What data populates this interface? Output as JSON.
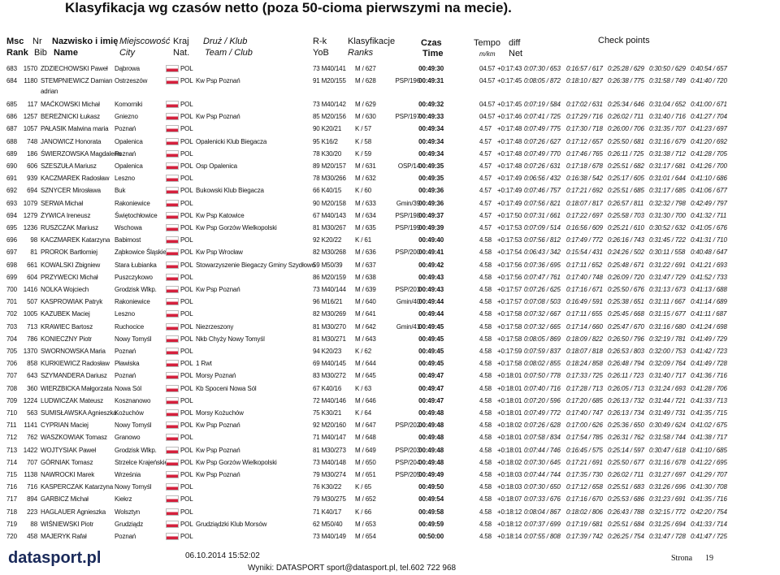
{
  "header": {
    "title": "Klasyfikacja wg czasów netto (poza 50-cioma pierwszymi na mecie).",
    "columns": {
      "msc": "Msc",
      "nr": "Nr",
      "name": "Nazwisko i imię",
      "city": "Miejscowość",
      "nat": "Kraj",
      "team": "Druż / Klub",
      "rk": "R-k",
      "cls": "Klasyfikacje",
      "time": "Czas",
      "pace": "Tempo",
      "diff": "diff",
      "cps": "Check points"
    },
    "columns2": {
      "msc": "Rank",
      "nr": "Bib",
      "name": "Name",
      "city": "City",
      "nat": "Nat.",
      "team": "Team / Club",
      "rk": "YoB",
      "cls": "Ranks",
      "time": "Time",
      "pace": "m/km",
      "diff": "Net"
    }
  },
  "table": {
    "rows": [
      {
        "rank": "683",
        "bib": "1570",
        "name": "ZDZIECHOWSKI Paweł",
        "city": "Dąbrowa",
        "nat": "POL",
        "rk": "73 M40/141",
        "cls": "M / 627",
        "time": "00:49:30",
        "pace": "04.57",
        "diff": "+0:17:43",
        "cps": [
          "0:07:30 / 653",
          "0:16:57 / 617",
          "0:25:28 / 629",
          "0:30:50 / 629",
          "0:40:54 / 657"
        ]
      },
      {
        "rank": "684",
        "bib": "1180",
        "name": "STEMPNIEWICZ Damian",
        "name2": "adrian",
        "city": "Ostrzeszów",
        "nat": "POL",
        "team": "Kw Psp Poznań",
        "rk": "91 M20/155",
        "cls": "M / 628",
        "sub": "PSP/196",
        "time": "00:49:31",
        "pace": "04.57",
        "diff": "+0:17:45",
        "cps": [
          "0:08:05 / 872",
          "0:18:10 / 827",
          "0:26:38 / 775",
          "0:31:58 / 749",
          "0:41:40 / 720"
        ]
      },
      {
        "rank": "685",
        "bib": "117",
        "name": "MAĆKOWSKI Michał",
        "city": "Komorniki",
        "nat": "POL",
        "rk": "73 M40/142",
        "cls": "M / 629",
        "time": "00:49:32",
        "pace": "04.57",
        "diff": "+0:17:45",
        "cps": [
          "0:07:19 / 584",
          "0:17:02 / 631",
          "0:25:34 / 646",
          "0:31:04 / 652",
          "0:41:00 / 671"
        ]
      },
      {
        "rank": "686",
        "bib": "1257",
        "name": "BEREŻNICKI Łukasz",
        "city": "Gniezno",
        "nat": "POL",
        "team": "Kw Psp Poznań",
        "rk": "85 M20/156",
        "cls": "M / 630",
        "sub": "PSP/197",
        "time": "00:49:33",
        "pace": "04.57",
        "diff": "+0:17:46",
        "cps": [
          "0:07:41 / 725",
          "0:17:29 / 716",
          "0:26:02 / 711",
          "0:31:40 / 716",
          "0:41:27 / 704"
        ]
      },
      {
        "rank": "687",
        "bib": "1057",
        "name": "PAŁASIK Malwina maria",
        "city": "Poznań",
        "nat": "POL",
        "rk": "90 K20/21",
        "cls": "K / 57",
        "time": "00:49:34",
        "pace": "4.57",
        "diff": "+0:17:48",
        "cps": [
          "0:07:49 / 775",
          "0:17:30 / 718",
          "0:26:00 / 706",
          "0:31:35 / 707",
          "0:41:23 / 697"
        ]
      },
      {
        "rank": "688",
        "bib": "748",
        "name": "JANOWICZ Honorata",
        "city": "Opalenica",
        "nat": "POL",
        "team": "Opalenicki Klub Biegacza",
        "rk": "95 K16/2",
        "cls": "K / 58",
        "time": "00:49:34",
        "pace": "4.57",
        "diff": "+0:17:48",
        "cps": [
          "0:07:26 / 627",
          "0:17:12 / 657",
          "0:25:50 / 681",
          "0:31:16 / 679",
          "0:41:20 / 692"
        ]
      },
      {
        "rank": "689",
        "bib": "186",
        "name": "ŚWIERZOWSKA Magdalena",
        "city": "Poznań",
        "nat": "POL",
        "rk": "78 K30/20",
        "cls": "K / 59",
        "time": "00:49:34",
        "pace": "4.57",
        "diff": "+0:17:48",
        "cps": [
          "0:07:49 / 770",
          "0:17:46 / 765",
          "0:26:11 / 725",
          "0:31:38 / 712",
          "0:41:28 / 705"
        ]
      },
      {
        "rank": "690",
        "bib": "606",
        "name": "SZESZUŁA Mariusz",
        "city": "Opalenica",
        "nat": "POL",
        "team": "Osp Opalenica",
        "rk": "89 M20/157",
        "cls": "M / 631",
        "sub": "OSP/14",
        "time": "00:49:35",
        "pace": "4.57",
        "diff": "+0:17:48",
        "cps": [
          "0:07:26 / 631",
          "0:17:18 / 678",
          "0:25:51 / 682",
          "0:31:17 / 681",
          "0:41:26 / 700"
        ]
      },
      {
        "rank": "691",
        "bib": "939",
        "name": "KACZMAREK Radosław",
        "city": "Leszno",
        "nat": "POL",
        "rk": "78 M30/266",
        "cls": "M / 632",
        "time": "00:49:35",
        "pace": "4.57",
        "diff": "+0:17:49",
        "cps": [
          "0:06:56 / 432",
          "0:16:38 / 542",
          "0:25:17 / 605",
          "0:31:01 / 644",
          "0:41:10 / 686"
        ]
      },
      {
        "rank": "692",
        "bib": "694",
        "name": "SZNYCER Mirosława",
        "city": "Buk",
        "nat": "POL",
        "team": "Bukowski Klub Biegacza",
        "rk": "66 K40/15",
        "cls": "K / 60",
        "time": "00:49:36",
        "pace": "4.57",
        "diff": "+0:17:49",
        "cps": [
          "0:07:46 / 757",
          "0:17:21 / 692",
          "0:25:51 / 685",
          "0:31:17 / 685",
          "0:41:06 / 677"
        ]
      },
      {
        "rank": "693",
        "bib": "1079",
        "name": "SERWA Michał",
        "city": "Rakoniewice",
        "nat": "POL",
        "rk": "90 M20/158",
        "cls": "M / 633",
        "sub": "Gmin/39",
        "time": "00:49:36",
        "pace": "4.57",
        "diff": "+0:17:49",
        "cps": [
          "0:07:56 / 821",
          "0:18:07 / 817",
          "0:26:57 / 811",
          "0:32:32 / 798",
          "0:42:49 / 797"
        ]
      },
      {
        "rank": "694",
        "bib": "1279",
        "name": "ŻYWICA Ireneusz",
        "city": "Świętochłowice",
        "nat": "POL",
        "team": "Kw Psp Katowice",
        "rk": "67 M40/143",
        "cls": "M / 634",
        "sub": "PSP/198",
        "time": "00:49:37",
        "pace": "4.57",
        "diff": "+0:17:50",
        "cps": [
          "0:07:31 / 661",
          "0:17:22 / 697",
          "0:25:58 / 703",
          "0:31:30 / 700",
          "0:41:32 / 711"
        ]
      },
      {
        "rank": "695",
        "bib": "1236",
        "name": "RUSZCZAK Mariusz",
        "city": "Wschowa",
        "nat": "POL",
        "team": "Kw Psp Gorzów Wielkopolski",
        "rk": "81 M30/267",
        "cls": "M / 635",
        "sub": "PSP/199",
        "time": "00:49:39",
        "pace": "4.57",
        "diff": "+0:17:53",
        "cps": [
          "0:07:09 / 514",
          "0:16:56 / 609",
          "0:25:21 / 610",
          "0:30:52 / 632",
          "0:41:05 / 676"
        ]
      },
      {
        "rank": "696",
        "bib": "98",
        "name": "KACZMAREK Katarzyna",
        "city": "Babimost",
        "nat": "POL",
        "rk": "92 K20/22",
        "cls": "K / 61",
        "time": "00:49:40",
        "pace": "4.58",
        "diff": "+0:17:53",
        "cps": [
          "0:07:56 / 812",
          "0:17:49 / 772",
          "0:26:16 / 743",
          "0:31:45 / 722",
          "0:41:31 / 710"
        ]
      },
      {
        "rank": "697",
        "bib": "81",
        "name": "PROROK Bartłomiej",
        "city": "Ząbkowice Śląskie",
        "nat": "POL",
        "team": "Kw Psp Wrocław",
        "rk": "82 M30/268",
        "cls": "M / 636",
        "sub": "PSP/200",
        "time": "00:49:41",
        "pace": "4.58",
        "diff": "+0:17:54",
        "cps": [
          "0:06:43 / 342",
          "0:15:54 / 431",
          "0:24:26 / 502",
          "0:30:11 / 558",
          "0:40:48 / 647"
        ]
      },
      {
        "rank": "698",
        "bib": "661",
        "name": "KOWALSKI Zbigniew",
        "city": "Stara Łubianka",
        "nat": "POL",
        "team": "Stowarzyszenie Biegaczy Gminy Szydłowo",
        "rk": "59 M50/39",
        "cls": "M / 637",
        "time": "00:49:42",
        "pace": "4.58",
        "diff": "+0:17:56",
        "cps": [
          "0:07:36 / 695",
          "0:17:11 / 652",
          "0:25:48 / 671",
          "0:31:22 / 691",
          "0:41:21 / 693"
        ]
      },
      {
        "rank": "699",
        "bib": "604",
        "name": "PRZYWECKI Michał",
        "city": "Puszczykowo",
        "nat": "POL",
        "rk": "86 M20/159",
        "cls": "M / 638",
        "time": "00:49:43",
        "pace": "4.58",
        "diff": "+0:17:56",
        "cps": [
          "0:07:47 / 761",
          "0:17:40 / 748",
          "0:26:09 / 720",
          "0:31:47 / 729",
          "0:41:52 / 733"
        ]
      },
      {
        "rank": "700",
        "bib": "1416",
        "name": "NOLKA Wojciech",
        "city": "Grodzisk Wlkp.",
        "nat": "POL",
        "team": "Kw Psp Poznań",
        "rk": "73 M40/144",
        "cls": "M / 639",
        "sub": "PSP/201",
        "time": "00:49:43",
        "pace": "4.58",
        "diff": "+0:17:57",
        "cps": [
          "0:07:26 / 625",
          "0:17:16 / 671",
          "0:25:50 / 676",
          "0:31:13 / 673",
          "0:41:13 / 688"
        ]
      },
      {
        "rank": "701",
        "bib": "507",
        "name": "KASPROWIAK Patryk",
        "city": "Rakoniewice",
        "nat": "POL",
        "rk": "96 M16/21",
        "cls": "M / 640",
        "sub": "Gmin/40",
        "time": "00:49:44",
        "pace": "4.58",
        "diff": "+0:17:57",
        "cps": [
          "0:07:08 / 503",
          "0:16:49 / 591",
          "0:25:38 / 651",
          "0:31:11 / 667",
          "0:41:14 / 689"
        ]
      },
      {
        "rank": "702",
        "bib": "1005",
        "name": "KAZUBEK Maciej",
        "city": "Leszno",
        "nat": "POL",
        "rk": "82 M30/269",
        "cls": "M / 641",
        "time": "00:49:44",
        "pace": "4.58",
        "diff": "+0:17:58",
        "cps": [
          "0:07:32 / 667",
          "0:17:11 / 655",
          "0:25:45 / 668",
          "0:31:15 / 677",
          "0:41:11 / 687"
        ]
      },
      {
        "rank": "703",
        "bib": "713",
        "name": "KRAWIEC Bartosz",
        "city": "Ruchocice",
        "nat": "POL",
        "team": "Niezrzeszony",
        "rk": "81 M30/270",
        "cls": "M / 642",
        "sub": "Gmin/41",
        "time": "00:49:45",
        "pace": "4.58",
        "diff": "+0:17:58",
        "cps": [
          "0:07:32 / 665",
          "0:17:14 / 660",
          "0:25:47 / 670",
          "0:31:16 / 680",
          "0:41:24 / 698"
        ]
      },
      {
        "rank": "704",
        "bib": "786",
        "name": "KONIECZNY Piotr",
        "city": "Nowy Tomyśl",
        "nat": "POL",
        "team": "Nkb Chyży Nowy Tomyśl",
        "rk": "81 M30/271",
        "cls": "M / 643",
        "time": "00:49:45",
        "pace": "4.58",
        "diff": "+0:17:58",
        "cps": [
          "0:08:05 / 869",
          "0:18:09 / 822",
          "0:26:50 / 796",
          "0:32:19 / 781",
          "0:41:49 / 729"
        ]
      },
      {
        "rank": "705",
        "bib": "1370",
        "name": "SWORNOWSKA Maria",
        "city": "Poznań",
        "nat": "POL",
        "rk": "94 K20/23",
        "cls": "K / 62",
        "time": "00:49:45",
        "pace": "4.58",
        "diff": "+0:17:59",
        "cps": [
          "0:07:59 / 837",
          "0:18:07 / 818",
          "0:26:53 / 803",
          "0:32:00 / 753",
          "0:41:42 / 723"
        ]
      },
      {
        "rank": "706",
        "bib": "858",
        "name": "KURKIEWICZ Radosław",
        "city": "Pławiska",
        "nat": "POL",
        "team": "1 Rwt",
        "rk": "69 M40/145",
        "cls": "M / 644",
        "time": "00:49:45",
        "pace": "4.58",
        "diff": "+0:17:58",
        "cps": [
          "0:08:02 / 855",
          "0:18:24 / 858",
          "0:26:48 / 794",
          "0:32:09 / 764",
          "0:41:49 / 728"
        ]
      },
      {
        "rank": "707",
        "bib": "643",
        "name": "SZYMANDERA Dariusz",
        "city": "Poznań",
        "nat": "POL",
        "team": "Morsy Poznań",
        "rk": "83 M30/272",
        "cls": "M / 645",
        "time": "00:49:47",
        "pace": "4.58",
        "diff": "+0:18:01",
        "cps": [
          "0:07:50 / 778",
          "0:17:33 / 725",
          "0:26:11 / 723",
          "0:31:40 / 717",
          "0:41:36 / 716"
        ]
      },
      {
        "rank": "708",
        "bib": "360",
        "name": "WIERZBICKA Małgorzata",
        "city": "Nowa Sól",
        "nat": "POL",
        "team": "Kb Spoceni Nowa Sól",
        "rk": "67 K40/16",
        "cls": "K / 63",
        "time": "00:49:47",
        "pace": "4.58",
        "diff": "+0:18:01",
        "cps": [
          "0:07:40 / 716",
          "0:17:28 / 713",
          "0:26:05 / 713",
          "0:31:24 / 693",
          "0:41:28 / 706"
        ]
      },
      {
        "rank": "709",
        "bib": "1224",
        "name": "LUDWICZAK Mateusz",
        "city": "Kosznanowo",
        "nat": "POL",
        "rk": "72 M40/146",
        "cls": "M / 646",
        "time": "00:49:47",
        "pace": "4.58",
        "diff": "+0:18:01",
        "cps": [
          "0:07:20 / 596",
          "0:17:20 / 685",
          "0:26:13 / 732",
          "0:31:44 / 721",
          "0:41:33 / 713"
        ]
      },
      {
        "rank": "710",
        "bib": "563",
        "name": "SUMISŁAWSKA Agnieszka",
        "city": "Kożuchów",
        "nat": "POL",
        "team": "Morsy Kożuchów",
        "rk": "75 K30/21",
        "cls": "K / 64",
        "time": "00:49:48",
        "pace": "4.58",
        "diff": "+0:18:01",
        "cps": [
          "0:07:49 / 772",
          "0:17:40 / 747",
          "0:26:13 / 734",
          "0:31:49 / 731",
          "0:41:35 / 715"
        ]
      },
      {
        "rank": "711",
        "bib": "1141",
        "name": "CYPRIAN Maciej",
        "city": "Nowy Tomyśl",
        "nat": "POL",
        "team": "Kw Psp Poznań",
        "rk": "92 M20/160",
        "cls": "M / 647",
        "sub": "PSP/202",
        "time": "00:49:48",
        "pace": "4.58",
        "diff": "+0:18:02",
        "cps": [
          "0:07:26 / 628",
          "0:17:00 / 626",
          "0:25:36 / 650",
          "0:30:49 / 624",
          "0:41:02 / 675"
        ]
      },
      {
        "rank": "712",
        "bib": "762",
        "name": "WASZKOWIAK Tomasz",
        "city": "Granowo",
        "nat": "POL",
        "rk": "71 M40/147",
        "cls": "M / 648",
        "time": "00:49:48",
        "pace": "4.58",
        "diff": "+0:18:01",
        "cps": [
          "0:07:58 / 834",
          "0:17:54 / 785",
          "0:26:31 / 762",
          "0:31:58 / 744",
          "0:41:38 / 717"
        ]
      },
      {
        "rank": "713",
        "bib": "1422",
        "name": "WOJTYSIAK Paweł",
        "city": "Grodzisk Wlkp.",
        "nat": "POL",
        "team": "Kw Psp Poznań",
        "rk": "81 M30/273",
        "cls": "M / 649",
        "sub": "PSP/203",
        "time": "00:49:48",
        "pace": "4.58",
        "diff": "+0:18:01",
        "cps": [
          "0:07:44 / 746",
          "0:16:45 / 575",
          "0:25:14 / 597",
          "0:30:47 / 618",
          "0:41:10 / 685"
        ]
      },
      {
        "rank": "714",
        "bib": "707",
        "name": "GÓRNIAK Tomasz",
        "city": "Strzelce Krajeńskie",
        "nat": "POL",
        "team": "Kw Psp Gorzów Wielkopolski",
        "rk": "73 M40/148",
        "cls": "M / 650",
        "sub": "PSP/204",
        "time": "00:49:48",
        "pace": "4.58",
        "diff": "+0:18:02",
        "cps": [
          "0:07:30 / 645",
          "0:17:21 / 691",
          "0:25:50 / 677",
          "0:31:16 / 678",
          "0:41:22 / 695"
        ]
      },
      {
        "rank": "715",
        "bib": "1138",
        "name": "NAWROCKI Marek",
        "city": "Września",
        "nat": "POL",
        "team": "Kw Psp Poznań",
        "rk": "79 M30/274",
        "cls": "M / 651",
        "sub": "PSP/205",
        "time": "00:49:49",
        "pace": "4.58",
        "diff": "+0:18:03",
        "cps": [
          "0:07:44 / 744",
          "0:17:35 / 730",
          "0:26:02 / 711",
          "0:31:27 / 697",
          "0:41:29 / 707"
        ]
      },
      {
        "rank": "716",
        "bib": "716",
        "name": "KASPERCZAK Katarzyna",
        "city": "Nowy Tomyśl",
        "nat": "POL",
        "rk": "76 K30/22",
        "cls": "K / 65",
        "time": "00:49:50",
        "pace": "4.58",
        "diff": "+0:18:03",
        "cps": [
          "0:07:30 / 650",
          "0:17:12 / 658",
          "0:25:51 / 683",
          "0:31:26 / 696",
          "0:41:30 / 708"
        ]
      },
      {
        "rank": "717",
        "bib": "894",
        "name": "GARBICZ Michał",
        "city": "Kiekrz",
        "nat": "POL",
        "rk": "79 M30/275",
        "cls": "M / 652",
        "time": "00:49:54",
        "pace": "4.58",
        "diff": "+0:18:07",
        "cps": [
          "0:07:33 / 676",
          "0:17:16 / 670",
          "0:25:53 / 686",
          "0:31:23 / 691",
          "0:41:35 / 716"
        ]
      },
      {
        "rank": "718",
        "bib": "223",
        "name": "HAGLAUER Agnieszka",
        "city": "Wolsztyn",
        "nat": "POL",
        "rk": "71 K40/17",
        "cls": "K / 66",
        "time": "00:49:58",
        "pace": "4.58",
        "diff": "+0:18:12",
        "cps": [
          "0:08:04 / 867",
          "0:18:02 / 806",
          "0:26:43 / 788",
          "0:32:15 / 772",
          "0:42:20 / 754"
        ]
      },
      {
        "rank": "719",
        "bib": "88",
        "name": "WIŚNIEWSKI Piotr",
        "city": "Grudziądz",
        "nat": "POL",
        "team": "Grudziądzki Klub Morsów",
        "rk": "62 M50/40",
        "cls": "M / 653",
        "time": "00:49:59",
        "pace": "4.58",
        "diff": "+0:18:12",
        "cps": [
          "0:07:37 / 699",
          "0:17:19 / 681",
          "0:25:51 / 684",
          "0:31:25 / 694",
          "0:41:33 / 714"
        ]
      },
      {
        "rank": "720",
        "bib": "458",
        "name": "MAJERYK Rafał",
        "city": "Poznań",
        "nat": "POL",
        "rk": "73 M40/149",
        "cls": "M / 654",
        "time": "00:50:00",
        "pace": "4.58",
        "diff": "+0:18:14",
        "cps": [
          "0:07:55 / 808",
          "0:17:39 / 742",
          "0:26:25 / 754",
          "0:31:47 / 728",
          "0:41:47 / 725"
        ]
      }
    ]
  },
  "footer": {
    "logo": "datasport.pl",
    "date": "06.10.2014 15:52:02",
    "contact": "Wyniki: DATASPORT sport@datasport.pl, tel.602 722 968",
    "page_label": "Strona",
    "page": "19"
  }
}
